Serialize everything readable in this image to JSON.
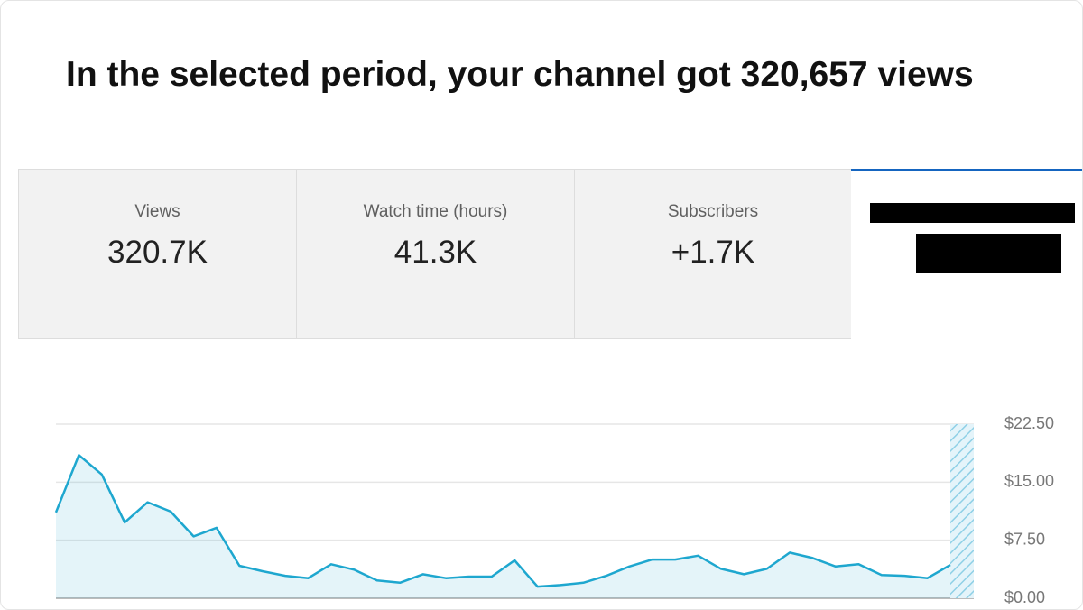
{
  "header": {
    "title": "In the selected period, your channel got 320,657 views"
  },
  "tabs": [
    {
      "label": "Views",
      "value": "320.7K"
    },
    {
      "label": "Watch time (hours)",
      "value": "41.3K"
    },
    {
      "label": "Subscribers",
      "value": "+1.7K"
    }
  ],
  "chart_data": {
    "type": "area",
    "color": "#1ea7cf",
    "values": [
      11.1,
      18.5,
      16.0,
      9.8,
      12.4,
      11.2,
      8.0,
      9.1,
      4.2,
      3.5,
      2.9,
      2.6,
      4.4,
      3.7,
      2.3,
      2.0,
      3.1,
      2.6,
      2.8,
      2.8,
      4.9,
      1.5,
      1.7,
      2.0,
      2.9,
      4.1,
      5.0,
      5.0,
      5.5,
      3.8,
      3.1,
      3.8,
      5.9,
      5.2,
      4.1,
      4.4,
      3.0,
      2.9,
      2.6,
      4.3
    ],
    "ylim": [
      0,
      22.5
    ],
    "yticks": [
      {
        "value": 0,
        "label": "$0.00"
      },
      {
        "value": 7.5,
        "label": "$7.50"
      },
      {
        "value": 15,
        "label": "$15.00"
      },
      {
        "value": 22.5,
        "label": "$22.50"
      }
    ],
    "grid": true
  }
}
